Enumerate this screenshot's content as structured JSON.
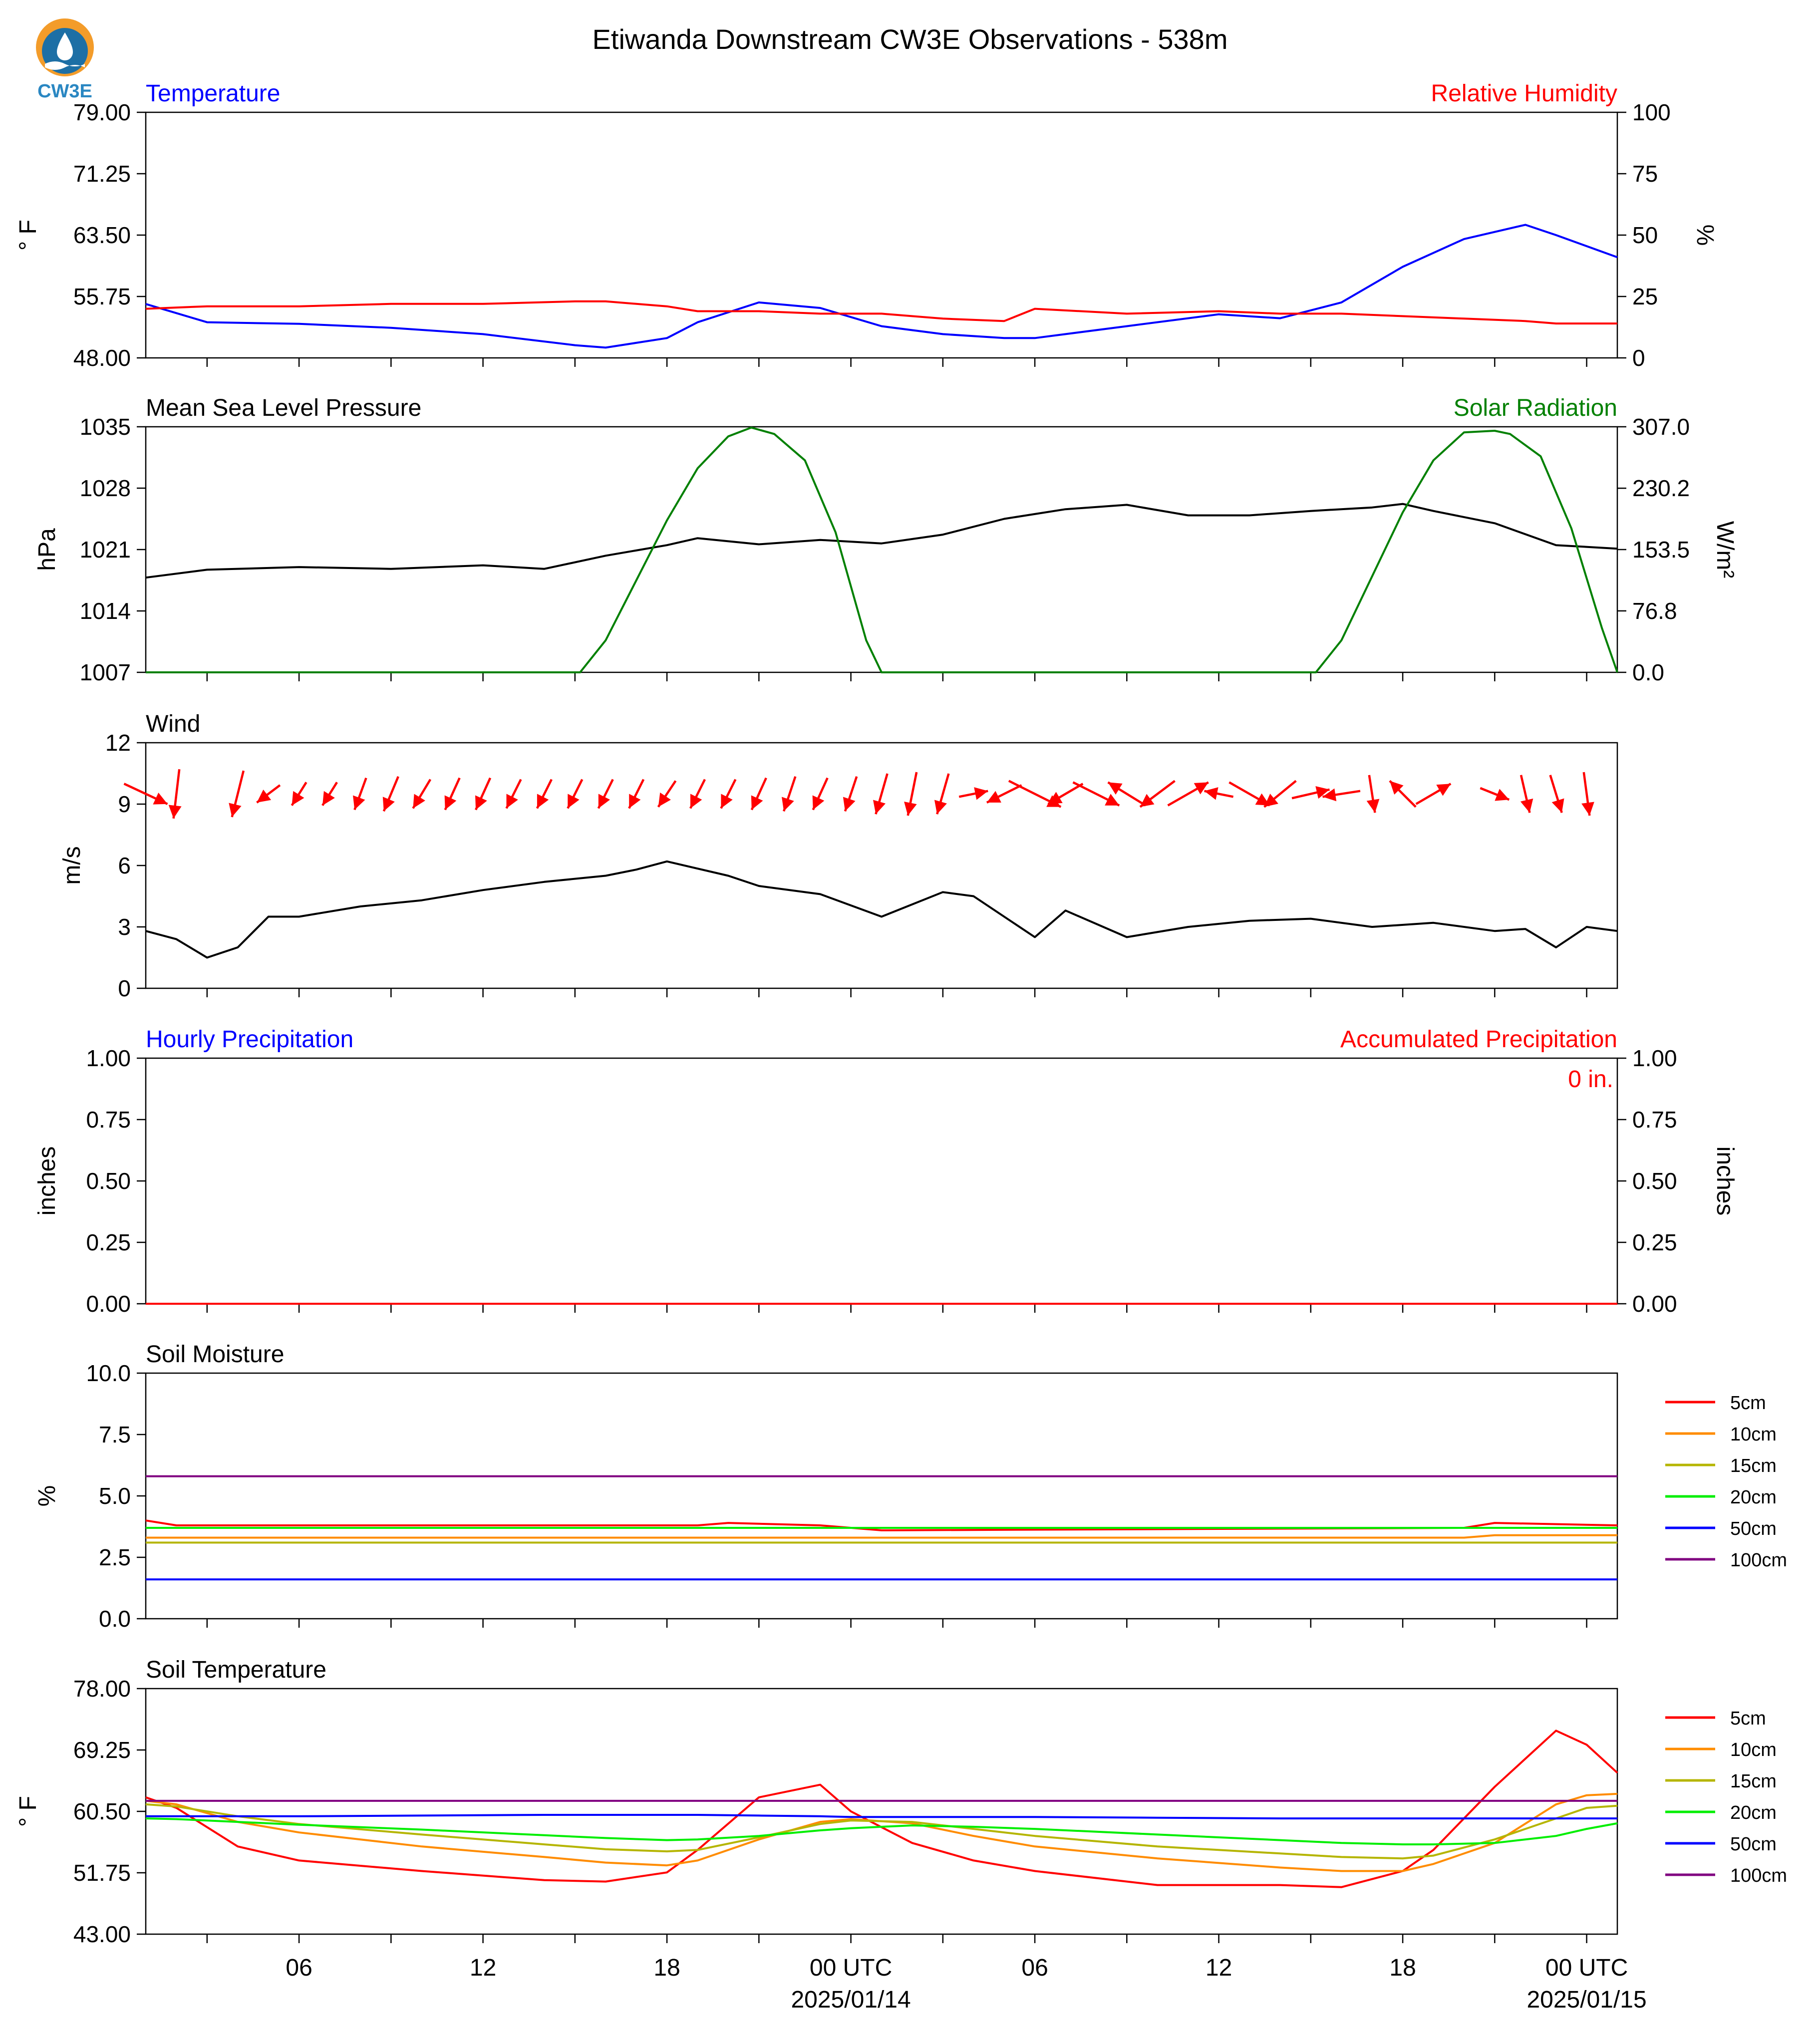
{
  "title": "Etiwanda Downstream CW3E Observations - 538m",
  "logo": {
    "text": "CW3E",
    "icon": "cw3e-logo-icon"
  },
  "colors": {
    "blue": "#0000ff",
    "red": "#ff0000",
    "green": "#008000",
    "black": "#000000",
    "purple": "#800080",
    "orange": "#ff8c00",
    "olive": "#b5b500",
    "lime": "#00ee00"
  },
  "x_ticks": [
    {
      "time": "2025-01-13 06:00",
      "label": "06"
    },
    {
      "time": "2025-01-13 12:00",
      "label": "12"
    },
    {
      "time": "2025-01-13 18:00",
      "label": "18"
    },
    {
      "time": "2025-01-14 00:00",
      "label": "00 UTC",
      "date": "2025/01/14"
    },
    {
      "time": "2025-01-14 06:00",
      "label": "06"
    },
    {
      "time": "2025-01-14 12:00",
      "label": "12"
    },
    {
      "time": "2025-01-14 18:00",
      "label": "18"
    },
    {
      "time": "2025-01-15 00:00",
      "label": "00 UTC",
      "date": "2025/01/15"
    }
  ],
  "chart_data": [
    {
      "type": "line",
      "title_left": "Temperature",
      "title_right": "Relative Humidity",
      "ylabel_left": "° F",
      "ylabel_right": "%",
      "ylim_left": [
        48.0,
        79.0
      ],
      "yticks_left": [
        "48.00",
        "55.75",
        "63.50",
        "71.25",
        "79.00"
      ],
      "ylim_right": [
        0,
        100
      ],
      "yticks_right": [
        "0",
        "25",
        "50",
        "75",
        "100"
      ],
      "x": [
        "2025-01-13 01:00",
        "2025-01-13 03:00",
        "2025-01-13 06:00",
        "2025-01-13 09:00",
        "2025-01-13 12:00",
        "2025-01-13 15:00",
        "2025-01-13 16:00",
        "2025-01-13 18:00",
        "2025-01-13 19:00",
        "2025-01-13 21:00",
        "2025-01-13 23:00",
        "2025-01-14 01:00",
        "2025-01-14 03:00",
        "2025-01-14 05:00",
        "2025-01-14 06:00",
        "2025-01-14 09:00",
        "2025-01-14 12:00",
        "2025-01-14 14:00",
        "2025-01-14 16:00",
        "2025-01-14 18:00",
        "2025-01-14 20:00",
        "2025-01-14 22:00",
        "2025-01-14 23:00",
        "2025-01-15 01:00"
      ],
      "series": [
        {
          "name": "Temperature",
          "axis": "left",
          "color": "#0000ff",
          "values": [
            54.8,
            52.5,
            52.3,
            51.8,
            51.0,
            49.6,
            49.3,
            50.5,
            52.5,
            55.0,
            54.3,
            52.0,
            51.0,
            50.5,
            50.5,
            52.0,
            53.5,
            53.0,
            55.0,
            59.5,
            63.0,
            64.8,
            63.5,
            60.7
          ]
        },
        {
          "name": "Relative Humidity",
          "axis": "right",
          "color": "#ff0000",
          "values": [
            20,
            21,
            21,
            22,
            22,
            23,
            23,
            21,
            19,
            19,
            18,
            18,
            16,
            15,
            20,
            18,
            19,
            18,
            18,
            17,
            16,
            15,
            14,
            14
          ]
        }
      ]
    },
    {
      "type": "line",
      "title_left": "Mean Sea Level Pressure",
      "title_right": "Solar Radiation",
      "ylabel_left": "hPa",
      "ylabel_right": "W/m²",
      "ylim_left": [
        1007,
        1035
      ],
      "yticks_left": [
        "1007",
        "1014",
        "1021",
        "1028",
        "1035"
      ],
      "ylim_right": [
        0.0,
        307.0
      ],
      "yticks_right": [
        "0.0",
        "76.8",
        "153.5",
        "230.2",
        "307.0"
      ],
      "pressure": {
        "name": "Mean Sea Level Pressure",
        "color": "#000000",
        "x": [
          "2025-01-13 01:00",
          "2025-01-13 03:00",
          "2025-01-13 06:00",
          "2025-01-13 09:00",
          "2025-01-13 12:00",
          "2025-01-13 14:00",
          "2025-01-13 16:00",
          "2025-01-13 18:00",
          "2025-01-13 19:00",
          "2025-01-13 21:00",
          "2025-01-13 23:00",
          "2025-01-14 01:00",
          "2025-01-14 03:00",
          "2025-01-14 05:00",
          "2025-01-14 07:00",
          "2025-01-14 09:00",
          "2025-01-14 11:00",
          "2025-01-14 13:00",
          "2025-01-14 15:00",
          "2025-01-14 17:00",
          "2025-01-14 18:00",
          "2025-01-14 19:00",
          "2025-01-14 21:00",
          "2025-01-14 23:00",
          "2025-01-15 01:00"
        ],
        "values": [
          1017.8,
          1018.7,
          1019.0,
          1018.8,
          1019.2,
          1018.8,
          1020.3,
          1021.5,
          1022.3,
          1021.6,
          1022.1,
          1021.7,
          1022.7,
          1024.5,
          1025.6,
          1026.1,
          1024.9,
          1024.9,
          1025.4,
          1025.8,
          1026.2,
          1025.4,
          1024.0,
          1021.5,
          1021.1
        ]
      },
      "solar": {
        "name": "Solar Radiation",
        "color": "#008000",
        "x": [
          "2025-01-13 01:00",
          "2025-01-13 15:10",
          "2025-01-13 16:00",
          "2025-01-13 17:00",
          "2025-01-13 18:00",
          "2025-01-13 19:00",
          "2025-01-13 20:00",
          "2025-01-13 20:45",
          "2025-01-13 21:30",
          "2025-01-13 22:30",
          "2025-01-13 23:30",
          "2025-01-14 00:30",
          "2025-01-14 01:00",
          "2025-01-14 15:10",
          "2025-01-14 16:00",
          "2025-01-14 17:00",
          "2025-01-14 18:00",
          "2025-01-14 19:00",
          "2025-01-14 20:00",
          "2025-01-14 21:00",
          "2025-01-14 21:30",
          "2025-01-14 22:30",
          "2025-01-14 23:30",
          "2025-01-15 00:30",
          "2025-01-15 01:00"
        ],
        "values": [
          0,
          0,
          40,
          115,
          190,
          255,
          295,
          306,
          298,
          265,
          175,
          40,
          0,
          0,
          40,
          120,
          200,
          265,
          300,
          302,
          298,
          270,
          180,
          55,
          0
        ]
      }
    },
    {
      "type": "line",
      "title_left": "Wind",
      "ylabel_left": "m/s",
      "ylim_left": [
        0,
        12
      ],
      "yticks_left": [
        "0",
        "3",
        "6",
        "9",
        "12"
      ],
      "wind_speed": {
        "name": "Wind",
        "color": "#000000",
        "x": [
          "2025-01-13 01:00",
          "2025-01-13 02:00",
          "2025-01-13 03:00",
          "2025-01-13 04:00",
          "2025-01-13 05:00",
          "2025-01-13 06:00",
          "2025-01-13 08:00",
          "2025-01-13 10:00",
          "2025-01-13 12:00",
          "2025-01-13 14:00",
          "2025-01-13 16:00",
          "2025-01-13 17:00",
          "2025-01-13 18:00",
          "2025-01-13 20:00",
          "2025-01-13 21:00",
          "2025-01-13 23:00",
          "2025-01-14 01:00",
          "2025-01-14 03:00",
          "2025-01-14 04:00",
          "2025-01-14 06:00",
          "2025-01-14 07:00",
          "2025-01-14 09:00",
          "2025-01-14 11:00",
          "2025-01-14 13:00",
          "2025-01-14 15:00",
          "2025-01-14 17:00",
          "2025-01-14 19:00",
          "2025-01-14 21:00",
          "2025-01-14 22:00",
          "2025-01-14 23:00",
          "2025-01-15 00:00",
          "2025-01-15 01:00"
        ],
        "values": [
          2.8,
          2.4,
          1.5,
          2.0,
          3.5,
          3.5,
          4.0,
          4.3,
          4.8,
          5.2,
          5.5,
          5.8,
          6.2,
          5.5,
          5.0,
          4.6,
          3.5,
          4.7,
          4.5,
          2.5,
          3.8,
          2.5,
          3.0,
          3.3,
          3.4,
          3.0,
          3.2,
          2.8,
          2.9,
          2.0,
          3.0,
          2.8
        ]
      },
      "wind_barbs": {
        "color": "#ff0000",
        "times": [
          "2025-01-13 01:00",
          "2025-01-13 02:00",
          "2025-01-13 04:00",
          "2025-01-13 05:00",
          "2025-01-13 06:00",
          "2025-01-13 07:00",
          "2025-01-13 08:00",
          "2025-01-13 09:00",
          "2025-01-13 10:00",
          "2025-01-13 11:00",
          "2025-01-13 12:00",
          "2025-01-13 13:00",
          "2025-01-13 14:00",
          "2025-01-13 15:00",
          "2025-01-13 16:00",
          "2025-01-13 17:00",
          "2025-01-13 18:00",
          "2025-01-13 19:00",
          "2025-01-13 20:00",
          "2025-01-13 21:00",
          "2025-01-13 22:00",
          "2025-01-13 23:00",
          "2025-01-14 00:00",
          "2025-01-14 01:00",
          "2025-01-14 02:00",
          "2025-01-14 03:00",
          "2025-01-14 04:00",
          "2025-01-14 05:00",
          "2025-01-14 06:00",
          "2025-01-14 07:00",
          "2025-01-14 08:00",
          "2025-01-14 09:00",
          "2025-01-14 10:00",
          "2025-01-14 11:00",
          "2025-01-14 12:00",
          "2025-01-14 13:00",
          "2025-01-14 14:00",
          "2025-01-14 15:00",
          "2025-01-14 16:00",
          "2025-01-14 17:00",
          "2025-01-14 18:00",
          "2025-01-14 19:00",
          "2025-01-14 21:00",
          "2025-01-14 22:00",
          "2025-01-14 23:00",
          "2025-01-15 00:00"
        ],
        "dx_mps": [
          1.5,
          -0.2,
          -0.4,
          -0.8,
          -0.5,
          -0.5,
          -0.4,
          -0.5,
          -0.6,
          -0.5,
          -0.5,
          -0.5,
          -0.5,
          -0.5,
          -0.5,
          -0.5,
          -0.6,
          -0.5,
          -0.5,
          -0.5,
          -0.4,
          -0.5,
          -0.4,
          -0.4,
          -0.3,
          -0.4,
          1.0,
          -1.2,
          1.8,
          -1.2,
          1.6,
          -1.3,
          -1.2,
          1.4,
          -1.0,
          1.4,
          -1.1,
          1.3,
          -1.3,
          0.2,
          -0.9,
          1.2,
          1.0,
          0.3,
          0.4,
          0.2
        ],
        "dy_mps": [
          -0.7,
          -1.7,
          -1.6,
          -0.6,
          -0.8,
          -0.8,
          -1.1,
          -1.2,
          -1.0,
          -1.1,
          -1.1,
          -1.0,
          -1.0,
          -1.0,
          -1.0,
          -1.0,
          -0.9,
          -1.0,
          -1.0,
          -1.1,
          -1.2,
          -1.1,
          -1.2,
          -1.4,
          -1.5,
          -1.4,
          0.2,
          -0.6,
          -0.9,
          -0.7,
          -0.8,
          0.8,
          -0.9,
          0.8,
          0.2,
          -0.8,
          -0.9,
          0.3,
          -0.2,
          -1.3,
          0.9,
          0.7,
          -0.4,
          -1.3,
          -1.3,
          -1.5
        ]
      }
    },
    {
      "type": "line",
      "title_left": "Hourly Precipitation",
      "title_right": "Accumulated Precipitation",
      "ylabel_left": "inches",
      "ylabel_right": "inches",
      "annotation": "0 in.",
      "ylim_left": [
        0.0,
        1.0
      ],
      "yticks_left": [
        "0.00",
        "0.25",
        "0.50",
        "0.75",
        "1.00"
      ],
      "ylim_right": [
        0.0,
        1.0
      ],
      "yticks_right": [
        "0.00",
        "0.25",
        "0.50",
        "0.75",
        "1.00"
      ],
      "x": [
        "2025-01-13 01:00",
        "2025-01-15 01:00"
      ],
      "series": [
        {
          "name": "Hourly Precipitation",
          "color": "#0000ff",
          "values": [
            0,
            0
          ]
        },
        {
          "name": "Accumulated Precipitation",
          "color": "#ff0000",
          "values": [
            0,
            0
          ]
        }
      ]
    },
    {
      "type": "line",
      "title_left": "Soil Moisture",
      "ylabel_left": "%",
      "ylim_left": [
        0.0,
        10.0
      ],
      "yticks_left": [
        "0.0",
        "2.5",
        "5.0",
        "7.5",
        "10.0"
      ],
      "x": [
        "2025-01-13 01:00",
        "2025-01-13 02:00",
        "2025-01-13 19:00",
        "2025-01-13 20:00",
        "2025-01-13 23:00",
        "2025-01-14 01:00",
        "2025-01-14 20:00",
        "2025-01-14 21:00",
        "2025-01-15 01:00"
      ],
      "series": [
        {
          "name": "5cm",
          "color": "#ff0000",
          "values": [
            4.0,
            3.8,
            3.8,
            3.9,
            3.8,
            3.6,
            3.7,
            3.9,
            3.8
          ]
        },
        {
          "name": "10cm",
          "color": "#ff8c00",
          "values": [
            3.3,
            3.3,
            3.3,
            3.3,
            3.3,
            3.3,
            3.3,
            3.4,
            3.4
          ]
        },
        {
          "name": "15cm",
          "color": "#b5b500",
          "values": [
            3.1,
            3.1,
            3.1,
            3.1,
            3.1,
            3.1,
            3.1,
            3.1,
            3.1
          ]
        },
        {
          "name": "20cm",
          "color": "#00ee00",
          "values": [
            3.7,
            3.7,
            3.7,
            3.7,
            3.7,
            3.7,
            3.7,
            3.7,
            3.7
          ]
        },
        {
          "name": "50cm",
          "color": "#0000ff",
          "values": [
            1.6,
            1.6,
            1.6,
            1.6,
            1.6,
            1.6,
            1.6,
            1.6,
            1.6
          ]
        },
        {
          "name": "100cm",
          "color": "#800080",
          "values": [
            5.8,
            5.8,
            5.8,
            5.8,
            5.8,
            5.8,
            5.8,
            5.8,
            5.8
          ]
        }
      ]
    },
    {
      "type": "line",
      "title_left": "Soil Temperature",
      "ylabel_left": "° F",
      "ylim_left": [
        43.0,
        78.0
      ],
      "yticks_left": [
        "43.00",
        "51.75",
        "60.50",
        "69.25",
        "78.00"
      ],
      "x": [
        "2025-01-13 01:00",
        "2025-01-13 02:00",
        "2025-01-13 04:00",
        "2025-01-13 06:00",
        "2025-01-13 10:00",
        "2025-01-13 14:00",
        "2025-01-13 16:00",
        "2025-01-13 18:00",
        "2025-01-13 19:00",
        "2025-01-13 21:00",
        "2025-01-13 23:00",
        "2025-01-14 00:00",
        "2025-01-14 02:00",
        "2025-01-14 04:00",
        "2025-01-14 06:00",
        "2025-01-14 10:00",
        "2025-01-14 14:00",
        "2025-01-14 16:00",
        "2025-01-14 18:00",
        "2025-01-14 19:00",
        "2025-01-14 21:00",
        "2025-01-14 23:00",
        "2025-01-15 00:00",
        "2025-01-15 01:00"
      ],
      "series": [
        {
          "name": "5cm",
          "color": "#ff0000",
          "values": [
            62.5,
            61.0,
            55.5,
            53.5,
            52.0,
            50.7,
            50.5,
            51.8,
            55.0,
            62.5,
            64.3,
            60.5,
            56.0,
            53.5,
            52.0,
            50.0,
            50.0,
            49.7,
            52.0,
            55.0,
            64.0,
            72.0,
            70.0,
            66.0
          ]
        },
        {
          "name": "10cm",
          "color": "#ff8c00",
          "values": [
            62.0,
            61.5,
            59.0,
            57.5,
            55.5,
            54.0,
            53.2,
            52.8,
            53.5,
            56.5,
            59.0,
            59.4,
            58.8,
            57.0,
            55.5,
            53.8,
            52.5,
            52.0,
            52.0,
            53.0,
            56.0,
            61.5,
            62.8,
            63.0
          ]
        },
        {
          "name": "15cm",
          "color": "#b5b500",
          "values": [
            61.5,
            61.2,
            59.8,
            58.7,
            57.2,
            55.8,
            55.1,
            54.8,
            55.0,
            56.8,
            58.7,
            59.2,
            59.0,
            58.0,
            57.0,
            55.5,
            54.5,
            54.0,
            53.8,
            54.2,
            56.5,
            59.5,
            61.0,
            61.3
          ]
        },
        {
          "name": "20cm",
          "color": "#00ee00",
          "values": [
            59.5,
            59.4,
            59.0,
            58.6,
            57.9,
            57.1,
            56.7,
            56.4,
            56.5,
            57.0,
            57.8,
            58.1,
            58.5,
            58.3,
            58.0,
            57.2,
            56.4,
            56.0,
            55.8,
            55.8,
            56.0,
            57.0,
            58.0,
            58.8
          ]
        },
        {
          "name": "50cm",
          "color": "#0000ff",
          "values": [
            59.8,
            59.8,
            59.8,
            59.8,
            59.9,
            60.0,
            60.0,
            60.0,
            60.0,
            59.9,
            59.8,
            59.7,
            59.7,
            59.7,
            59.7,
            59.6,
            59.5,
            59.5,
            59.5,
            59.5,
            59.5,
            59.5,
            59.5,
            59.5
          ]
        },
        {
          "name": "100cm",
          "color": "#800080",
          "values": [
            62.0,
            62.0,
            62.0,
            62.0,
            62.0,
            62.0,
            62.0,
            62.0,
            62.0,
            62.0,
            62.0,
            62.0,
            62.0,
            62.0,
            62.0,
            62.0,
            62.0,
            62.0,
            62.0,
            62.0,
            62.0,
            62.0,
            62.0,
            62.0
          ]
        }
      ]
    }
  ]
}
